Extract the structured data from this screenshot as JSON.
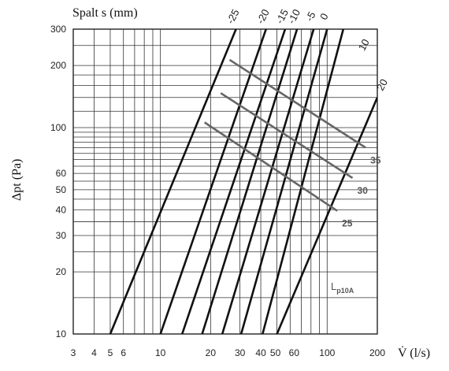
{
  "chart_data": {
    "type": "line",
    "title": "",
    "top_label": "Spalt s (mm)",
    "xlabel": "V̇  (l/s)",
    "ylabel": "Δpt  (Pa)",
    "x_scale": "log",
    "y_scale": "log",
    "xlim": [
      3,
      200
    ],
    "ylim": [
      10,
      300
    ],
    "grid": true,
    "x_tick_labels": [
      "3",
      "4",
      "5",
      "6",
      "10",
      "20",
      "30",
      "40",
      "50",
      "60",
      "100",
      "200"
    ],
    "y_tick_labels": [
      "10",
      "20",
      "30",
      "40",
      "50",
      "60",
      "100",
      "200",
      "300"
    ],
    "series": [
      {
        "name": "-25",
        "points": [
          [
            5,
            10
          ],
          [
            28.4,
            300
          ]
        ]
      },
      {
        "name": "-20",
        "points": [
          [
            10,
            10
          ],
          [
            43,
            300
          ]
        ]
      },
      {
        "name": "-15",
        "points": [
          [
            13.5,
            10
          ],
          [
            56,
            300
          ]
        ]
      },
      {
        "name": "-10",
        "points": [
          [
            17.8,
            10
          ],
          [
            66,
            300
          ]
        ]
      },
      {
        "name": "-5",
        "points": [
          [
            23.5,
            10
          ],
          [
            83,
            300
          ]
        ]
      },
      {
        "name": "0",
        "points": [
          [
            30.5,
            10
          ],
          [
            100,
            300
          ]
        ]
      },
      {
        "name": "10",
        "points": [
          [
            41,
            10
          ],
          [
            125,
            300
          ]
        ]
      },
      {
        "name": "20",
        "points": [
          [
            50,
            10
          ],
          [
            200,
            140
          ]
        ]
      }
    ],
    "level_curves": [
      {
        "name": "35",
        "points": [
          [
            26,
            213
          ],
          [
            170,
            80
          ]
        ]
      },
      {
        "name": "30",
        "points": [
          [
            23,
            147
          ],
          [
            142,
            57
          ]
        ]
      },
      {
        "name": "25",
        "points": [
          [
            18.4,
            106
          ],
          [
            115,
            39.5
          ]
        ]
      }
    ],
    "annotation": {
      "text": "L",
      "subscript": "p10A"
    }
  }
}
